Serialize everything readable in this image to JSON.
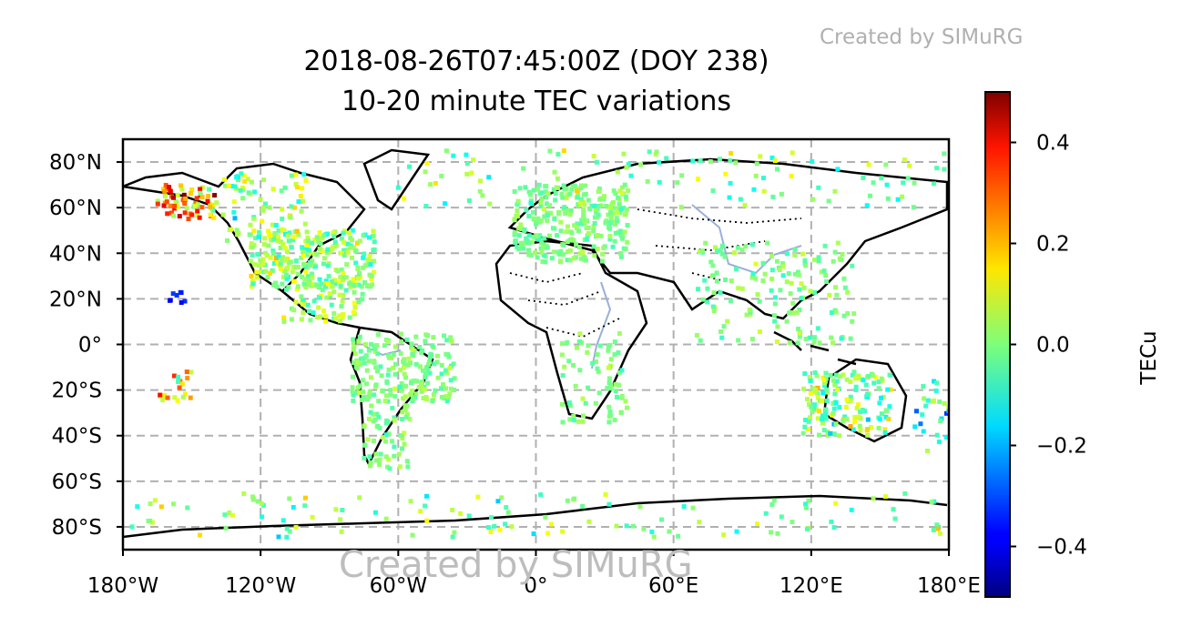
{
  "watermark": "Created by SIMuRG",
  "chart_data": {
    "type": "scatter",
    "title": "2018-08-26T07:45:00Z (DOY 238)",
    "subtitle": "10-20 minute TEC variations",
    "xlim": [
      -180,
      180
    ],
    "ylim": [
      -90,
      90
    ],
    "x_ticks": [
      -180,
      -120,
      -60,
      0,
      60,
      120,
      180
    ],
    "x_tick_labels": [
      "180°W",
      "120°W",
      "60°W",
      "0°",
      "60°E",
      "120°E",
      "180°E"
    ],
    "y_ticks": [
      80,
      60,
      40,
      20,
      0,
      -20,
      -40,
      -60,
      -80
    ],
    "y_tick_labels": [
      "80°N",
      "60°N",
      "40°N",
      "20°N",
      "0°",
      "20°S",
      "40°S",
      "60°S",
      "80°S"
    ],
    "grid": true,
    "colorbar": {
      "label": "TECu",
      "range": [
        -0.5,
        0.5
      ],
      "ticks": [
        0.4,
        0.2,
        0.0,
        -0.2,
        -0.4
      ],
      "tick_labels": [
        "0.4",
        "0.2",
        "0.0",
        "−0.2",
        "−0.4"
      ],
      "colormap": "jet"
    },
    "regions": [
      {
        "lon": [
          -125,
          -70
        ],
        "lat": [
          25,
          50
        ],
        "count": 260,
        "mean": 0.02,
        "spread": 0.12
      },
      {
        "lon": [
          -165,
          -140
        ],
        "lat": [
          55,
          70
        ],
        "count": 70,
        "mean": 0.22,
        "spread": 0.22
      },
      {
        "lon": [
          -140,
          -100
        ],
        "lat": [
          45,
          75
        ],
        "count": 80,
        "mean": 0.05,
        "spread": 0.15
      },
      {
        "lon": [
          -110,
          -75
        ],
        "lat": [
          10,
          30
        ],
        "count": 80,
        "mean": 0.03,
        "spread": 0.1
      },
      {
        "lon": [
          -80,
          -35
        ],
        "lat": [
          -25,
          5
        ],
        "count": 200,
        "mean": 0.0,
        "spread": 0.05
      },
      {
        "lon": [
          -75,
          -55
        ],
        "lat": [
          -55,
          -25
        ],
        "count": 60,
        "mean": 0.0,
        "spread": 0.06
      },
      {
        "lon": [
          -10,
          40
        ],
        "lat": [
          36,
          70
        ],
        "count": 280,
        "mean": 0.0,
        "spread": 0.05
      },
      {
        "lon": [
          10,
          40
        ],
        "lat": [
          -35,
          5
        ],
        "count": 70,
        "mean": 0.0,
        "spread": 0.05
      },
      {
        "lon": [
          70,
          140
        ],
        "lat": [
          0,
          45
        ],
        "count": 150,
        "mean": 0.0,
        "spread": 0.06
      },
      {
        "lon": [
          115,
          155
        ],
        "lat": [
          -40,
          -12
        ],
        "count": 150,
        "mean": 0.02,
        "spread": 0.14
      },
      {
        "lon": [
          -60,
          180
        ],
        "lat": [
          60,
          85
        ],
        "count": 110,
        "mean": 0.0,
        "spread": 0.12
      },
      {
        "lon": [
          -180,
          180
        ],
        "lat": [
          -85,
          -65
        ],
        "count": 120,
        "mean": 0.0,
        "spread": 0.12
      },
      {
        "lon": [
          -165,
          -150
        ],
        "lat": [
          -25,
          -12
        ],
        "count": 20,
        "mean": 0.1,
        "spread": 0.2
      },
      {
        "lon": [
          165,
          180
        ],
        "lat": [
          -47,
          -15
        ],
        "count": 25,
        "mean": -0.1,
        "spread": 0.2
      },
      {
        "lon": [
          -160,
          -153
        ],
        "lat": [
          18,
          23
        ],
        "count": 8,
        "mean": -0.35,
        "spread": 0.05
      }
    ]
  }
}
